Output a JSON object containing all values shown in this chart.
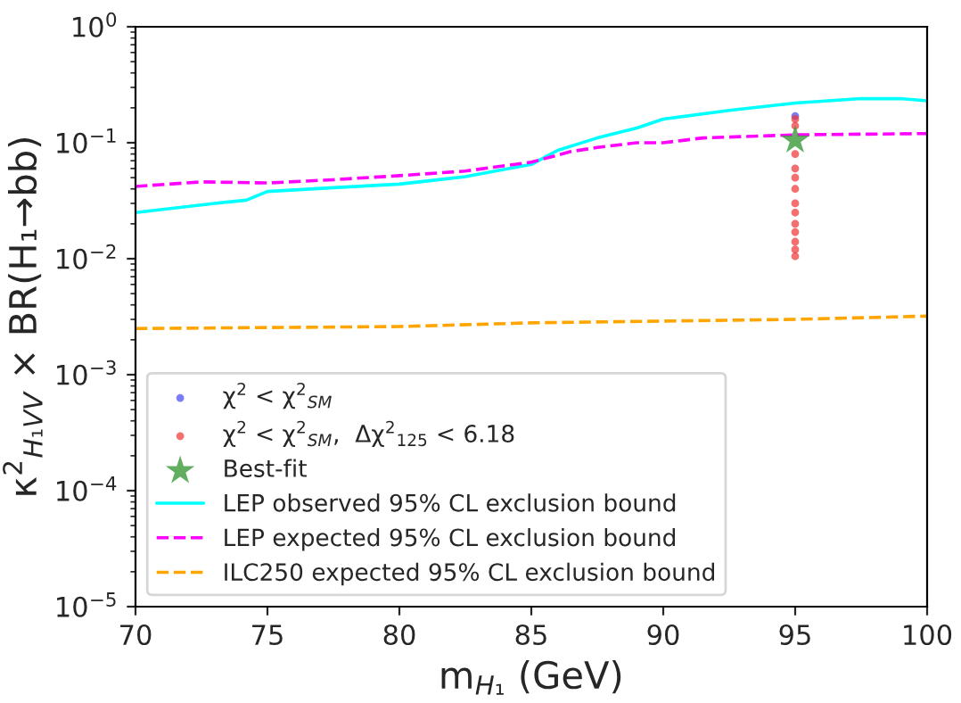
{
  "chart_data": {
    "type": "line",
    "xlabel": "m$_{H₁}$ (GeV)",
    "ylabel": "κ$^{2}$$_{H₁VV}$ × BR(H₁→bb)",
    "log": "y",
    "xlim": [
      70,
      100
    ],
    "xticks": [
      70,
      75,
      80,
      85,
      90,
      95,
      100
    ],
    "ylim": [
      1e-05,
      1
    ],
    "yticks": [
      {
        "value": 1e-05,
        "label": "10$^{−5}$"
      },
      {
        "value": 0.0001,
        "label": "10$^{−4}$"
      },
      {
        "value": 0.001,
        "label": "10$^{−3}$"
      },
      {
        "value": 0.01,
        "label": "10$^{−2}$"
      },
      {
        "value": 0.1,
        "label": "10$^{−1}$"
      },
      {
        "value": 1,
        "label": "10$^{0}$"
      }
    ],
    "grid": false,
    "legend": "bottom left",
    "series": [
      {
        "type": "scatter",
        "name": "χ$^{2}$ < χ$^{2}$$_{SM}$",
        "color": "#4444ee",
        "marker": "circle",
        "x": [
          95
        ],
        "values": [
          0.17
        ]
      },
      {
        "type": "scatter",
        "name": "χ$^{2}$ < χ$^{2}$$_{SM}$,  Δχ$^{2}$$_{125}$ < 6.18",
        "color": "#ee3333",
        "marker": "circle",
        "x": [
          95,
          95,
          95,
          95,
          95,
          95,
          95,
          95,
          95,
          95,
          95,
          95,
          95
        ],
        "values": [
          0.0105,
          0.012,
          0.014,
          0.017,
          0.02,
          0.025,
          0.03,
          0.04,
          0.05,
          0.06,
          0.08,
          0.14,
          0.16
        ]
      },
      {
        "type": "scatter",
        "name": "Best-fit",
        "color": "#3a9a3a",
        "marker": "star",
        "x": [
          95
        ],
        "values": [
          0.105
        ]
      },
      {
        "name": "LEP observed 95% CL exclusion bound",
        "color": "#00ffff",
        "line_style": "solid",
        "x": [
          70,
          73,
          74.2,
          75,
          77.5,
          80,
          82.5,
          85,
          86,
          87.5,
          89,
          90,
          92.5,
          95,
          97.5,
          99,
          100
        ],
        "values": [
          0.025,
          0.03,
          0.032,
          0.038,
          0.041,
          0.044,
          0.051,
          0.065,
          0.086,
          0.11,
          0.134,
          0.16,
          0.19,
          0.22,
          0.24,
          0.24,
          0.23
        ]
      },
      {
        "name": "LEP expected 95% CL exclusion bound",
        "color": "#ff00ff",
        "line_style": "dashed",
        "x": [
          70,
          72.5,
          75,
          77.5,
          80,
          82.5,
          85,
          86.5,
          87.5,
          89,
          90,
          91.5,
          95,
          100
        ],
        "values": [
          0.042,
          0.046,
          0.045,
          0.048,
          0.052,
          0.057,
          0.068,
          0.084,
          0.091,
          0.1,
          0.1,
          0.11,
          0.117,
          0.12
        ]
      },
      {
        "name": "ILC250 expected 95% CL exclusion bound",
        "color": "#ffa500",
        "line_style": "dashed",
        "x": [
          70,
          80,
          85,
          90,
          95,
          100
        ],
        "values": [
          0.0025,
          0.0026,
          0.0028,
          0.0029,
          0.003,
          0.0032
        ]
      }
    ]
  }
}
